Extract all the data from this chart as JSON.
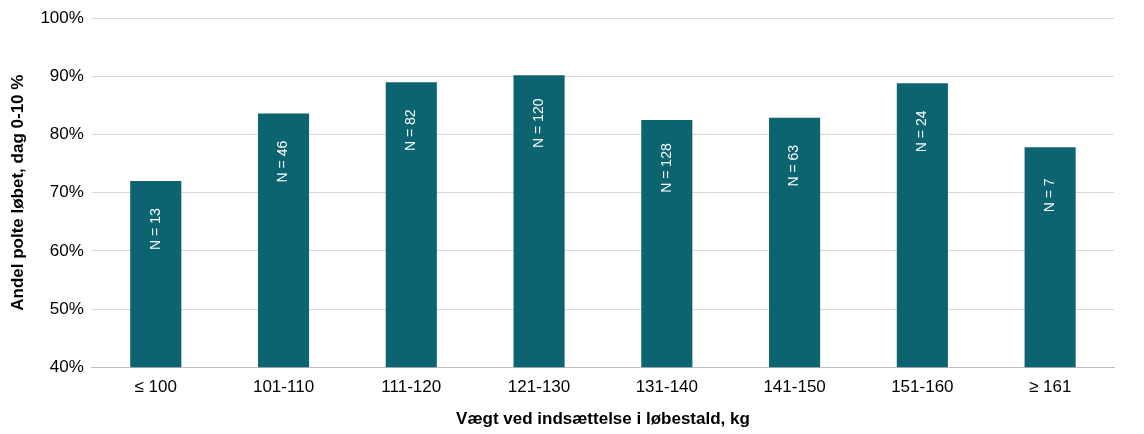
{
  "chart_data": {
    "type": "bar",
    "xlabel": "Vægt ved indsættelse i løbestald, kg",
    "ylabel": "Andel polte løbet, dag 0-10 %",
    "categories": [
      "≤ 100",
      "101-110",
      "111-120",
      "121-130",
      "131-140",
      "141-150",
      "151-160",
      "≥ 161"
    ],
    "values": [
      72.0,
      83.6,
      89.0,
      90.2,
      82.5,
      82.9,
      88.8,
      77.8
    ],
    "color": "#0b6470",
    "ylim": [
      40,
      100
    ],
    "yticks": [
      {
        "value": 40,
        "label": "40%"
      },
      {
        "value": 50,
        "label": "50%"
      },
      {
        "value": 60,
        "label": "60%"
      },
      {
        "value": 70,
        "label": "70%"
      },
      {
        "value": 80,
        "label": "80%"
      },
      {
        "value": 90,
        "label": "90%"
      },
      {
        "value": 100,
        "label": "100%"
      }
    ],
    "grid": "y",
    "legend": false,
    "annotations": [
      "N = 13",
      "N = 46",
      "N = 82",
      "N = 120",
      "N = 128",
      "N = 63",
      "N = 24",
      "N = 7"
    ]
  }
}
